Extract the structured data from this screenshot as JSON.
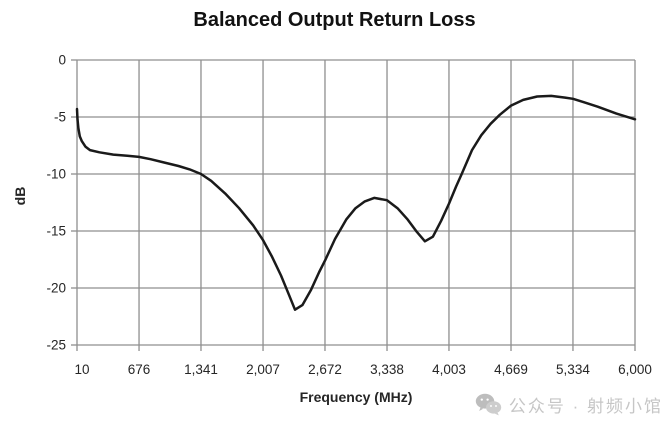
{
  "title": "Balanced Output Return Loss",
  "watermark": {
    "icon": "wechat-icon",
    "text": "公众号 · 射频小馆"
  },
  "chart_data": {
    "type": "line",
    "title": "Balanced Output Return Loss",
    "xlabel": "Frequency (MHz)",
    "ylabel": "dB",
    "xlim": [
      10,
      6000
    ],
    "ylim": [
      -25,
      0
    ],
    "grid": true,
    "legend": "none",
    "x_ticks": [
      10,
      676,
      1341,
      2007,
      2672,
      3338,
      4003,
      4669,
      5334,
      6000
    ],
    "x_tick_labels": [
      "10",
      "676",
      "1,341",
      "2,007",
      "2,672",
      "3,338",
      "4,003",
      "4,669",
      "5,334",
      "6,000"
    ],
    "y_ticks": [
      0,
      -5,
      -10,
      -15,
      -20,
      -25
    ],
    "y_tick_labels": [
      "0",
      "-5",
      "-10",
      "-15",
      "-20",
      "-25"
    ],
    "colors": {
      "line": "#1a1a1a",
      "grid": "#8f8f8f",
      "tick_text": "#262626",
      "background": "#ffffff",
      "watermark": "#c6c6c6"
    },
    "series": [
      {
        "name": "Balanced Output Return Loss",
        "points": [
          [
            10,
            -4.3
          ],
          [
            15,
            -5.2
          ],
          [
            25,
            -6.0
          ],
          [
            40,
            -6.7
          ],
          [
            60,
            -7.1
          ],
          [
            100,
            -7.6
          ],
          [
            150,
            -7.9
          ],
          [
            250,
            -8.1
          ],
          [
            400,
            -8.3
          ],
          [
            550,
            -8.4
          ],
          [
            676,
            -8.5
          ],
          [
            800,
            -8.7
          ],
          [
            950,
            -9.0
          ],
          [
            1100,
            -9.3
          ],
          [
            1220,
            -9.6
          ],
          [
            1341,
            -10.0
          ],
          [
            1450,
            -10.6
          ],
          [
            1600,
            -11.7
          ],
          [
            1750,
            -13.0
          ],
          [
            1900,
            -14.5
          ],
          [
            2007,
            -15.8
          ],
          [
            2100,
            -17.2
          ],
          [
            2200,
            -18.9
          ],
          [
            2280,
            -20.5
          ],
          [
            2350,
            -21.9
          ],
          [
            2430,
            -21.5
          ],
          [
            2520,
            -20.2
          ],
          [
            2610,
            -18.6
          ],
          [
            2672,
            -17.6
          ],
          [
            2780,
            -15.7
          ],
          [
            2900,
            -14.0
          ],
          [
            3000,
            -13.0
          ],
          [
            3100,
            -12.4
          ],
          [
            3200,
            -12.1
          ],
          [
            3338,
            -12.3
          ],
          [
            3450,
            -13.0
          ],
          [
            3560,
            -14.0
          ],
          [
            3660,
            -15.1
          ],
          [
            3745,
            -15.9
          ],
          [
            3830,
            -15.5
          ],
          [
            3920,
            -14.1
          ],
          [
            4003,
            -12.6
          ],
          [
            4080,
            -11.1
          ],
          [
            4140,
            -10.0
          ],
          [
            4250,
            -7.9
          ],
          [
            4350,
            -6.6
          ],
          [
            4450,
            -5.6
          ],
          [
            4550,
            -4.8
          ],
          [
            4669,
            -4.0
          ],
          [
            4800,
            -3.5
          ],
          [
            4950,
            -3.2
          ],
          [
            5100,
            -3.15
          ],
          [
            5250,
            -3.3
          ],
          [
            5334,
            -3.4
          ],
          [
            5450,
            -3.7
          ],
          [
            5600,
            -4.1
          ],
          [
            5800,
            -4.7
          ],
          [
            6000,
            -5.2
          ]
        ]
      }
    ]
  }
}
